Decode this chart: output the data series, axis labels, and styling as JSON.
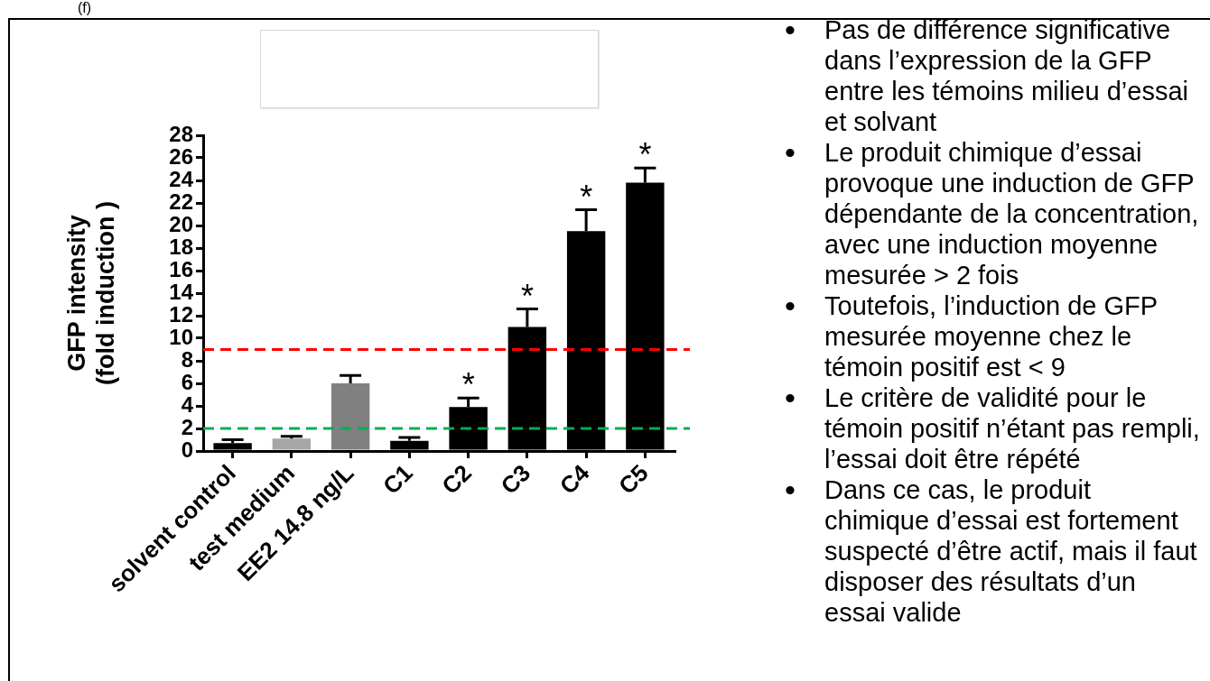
{
  "chart_data": {
    "type": "bar",
    "title": "(f)",
    "ylabel": "GFP intensity\n(fold induction )",
    "categories": [
      "solvent control",
      "test medium",
      "EE2 14.8 ng/L",
      "C1",
      "C2",
      "C3",
      "C4",
      "C5"
    ],
    "values": [
      0.7,
      1.1,
      6.0,
      0.9,
      3.9,
      11.0,
      19.5,
      23.8
    ],
    "colors": [
      "#000000",
      "#a6a6a6",
      "#808080",
      "#000000",
      "#000000",
      "#000000",
      "#000000",
      "#000000"
    ],
    "errors": [
      0.3,
      0.2,
      0.7,
      0.3,
      0.8,
      1.6,
      1.9,
      1.3
    ],
    "ylim": [
      0,
      28
    ],
    "yticks": [
      0,
      2,
      4,
      6,
      8,
      10,
      12,
      14,
      16,
      18,
      20,
      22,
      24,
      26,
      28
    ],
    "ref_lines": [
      {
        "axis": "y",
        "value": 9,
        "color": "#ff0000",
        "line_style": "dashed"
      },
      {
        "axis": "y",
        "value": 2,
        "color": "#00b050",
        "line_style": "dashed"
      }
    ],
    "annotations": [
      {
        "text": "*",
        "x": "C2",
        "y": 3.9
      },
      {
        "text": "*",
        "x": "C3",
        "y": 11.0
      },
      {
        "text": "*",
        "x": "C4",
        "y": 19.5
      },
      {
        "text": "*",
        "x": "C5",
        "y": 23.8
      },
      "•\tPas de différence significative dans l’expression de la GFP entre les témoins milieu d’essai et solvant",
      "•\tLe produit chimique d’essai provoque une induction de GFP dépendante de la concentration, avec une induction moyenne mesurée > 2 fois",
      "•\tToutefois, l’induction de GFP mesurée moyenne chez le témoin positif est < 9",
      "•\tLe critère de validité pour le témoin positif n’étant pas rempli, l’essai doit être répété",
      "•\tDans ce cas, le produit chimique d’essai est fortement suspecté d’être actif, mais il faut disposer des résultats d’un essai valide"
    ]
  }
}
